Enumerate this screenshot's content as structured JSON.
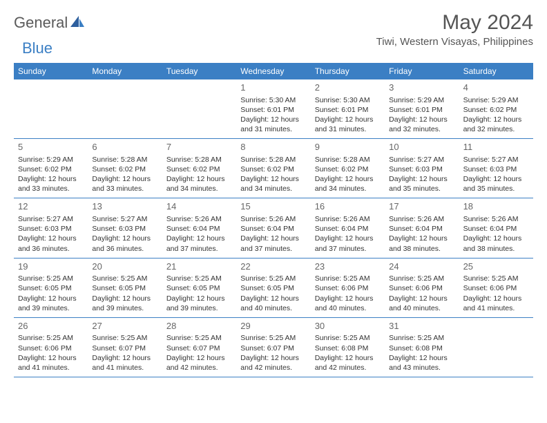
{
  "logo": {
    "text1": "General",
    "text2": "Blue"
  },
  "title": "May 2024",
  "subtitle": "Tiwi, Western Visayas, Philippines",
  "weekdays": [
    "Sunday",
    "Monday",
    "Tuesday",
    "Wednesday",
    "Thursday",
    "Friday",
    "Saturday"
  ],
  "colors": {
    "header_bg": "#3b7fc4",
    "header_text": "#ffffff",
    "border": "#3b7fc4",
    "text": "#333333",
    "daynum": "#666666"
  },
  "weeks": [
    [
      {
        "num": "",
        "sunrise": "",
        "sunset": "",
        "daylight": ""
      },
      {
        "num": "",
        "sunrise": "",
        "sunset": "",
        "daylight": ""
      },
      {
        "num": "",
        "sunrise": "",
        "sunset": "",
        "daylight": ""
      },
      {
        "num": "1",
        "sunrise": "Sunrise: 5:30 AM",
        "sunset": "Sunset: 6:01 PM",
        "daylight": "Daylight: 12 hours and 31 minutes."
      },
      {
        "num": "2",
        "sunrise": "Sunrise: 5:30 AM",
        "sunset": "Sunset: 6:01 PM",
        "daylight": "Daylight: 12 hours and 31 minutes."
      },
      {
        "num": "3",
        "sunrise": "Sunrise: 5:29 AM",
        "sunset": "Sunset: 6:01 PM",
        "daylight": "Daylight: 12 hours and 32 minutes."
      },
      {
        "num": "4",
        "sunrise": "Sunrise: 5:29 AM",
        "sunset": "Sunset: 6:02 PM",
        "daylight": "Daylight: 12 hours and 32 minutes."
      }
    ],
    [
      {
        "num": "5",
        "sunrise": "Sunrise: 5:29 AM",
        "sunset": "Sunset: 6:02 PM",
        "daylight": "Daylight: 12 hours and 33 minutes."
      },
      {
        "num": "6",
        "sunrise": "Sunrise: 5:28 AM",
        "sunset": "Sunset: 6:02 PM",
        "daylight": "Daylight: 12 hours and 33 minutes."
      },
      {
        "num": "7",
        "sunrise": "Sunrise: 5:28 AM",
        "sunset": "Sunset: 6:02 PM",
        "daylight": "Daylight: 12 hours and 34 minutes."
      },
      {
        "num": "8",
        "sunrise": "Sunrise: 5:28 AM",
        "sunset": "Sunset: 6:02 PM",
        "daylight": "Daylight: 12 hours and 34 minutes."
      },
      {
        "num": "9",
        "sunrise": "Sunrise: 5:28 AM",
        "sunset": "Sunset: 6:02 PM",
        "daylight": "Daylight: 12 hours and 34 minutes."
      },
      {
        "num": "10",
        "sunrise": "Sunrise: 5:27 AM",
        "sunset": "Sunset: 6:03 PM",
        "daylight": "Daylight: 12 hours and 35 minutes."
      },
      {
        "num": "11",
        "sunrise": "Sunrise: 5:27 AM",
        "sunset": "Sunset: 6:03 PM",
        "daylight": "Daylight: 12 hours and 35 minutes."
      }
    ],
    [
      {
        "num": "12",
        "sunrise": "Sunrise: 5:27 AM",
        "sunset": "Sunset: 6:03 PM",
        "daylight": "Daylight: 12 hours and 36 minutes."
      },
      {
        "num": "13",
        "sunrise": "Sunrise: 5:27 AM",
        "sunset": "Sunset: 6:03 PM",
        "daylight": "Daylight: 12 hours and 36 minutes."
      },
      {
        "num": "14",
        "sunrise": "Sunrise: 5:26 AM",
        "sunset": "Sunset: 6:04 PM",
        "daylight": "Daylight: 12 hours and 37 minutes."
      },
      {
        "num": "15",
        "sunrise": "Sunrise: 5:26 AM",
        "sunset": "Sunset: 6:04 PM",
        "daylight": "Daylight: 12 hours and 37 minutes."
      },
      {
        "num": "16",
        "sunrise": "Sunrise: 5:26 AM",
        "sunset": "Sunset: 6:04 PM",
        "daylight": "Daylight: 12 hours and 37 minutes."
      },
      {
        "num": "17",
        "sunrise": "Sunrise: 5:26 AM",
        "sunset": "Sunset: 6:04 PM",
        "daylight": "Daylight: 12 hours and 38 minutes."
      },
      {
        "num": "18",
        "sunrise": "Sunrise: 5:26 AM",
        "sunset": "Sunset: 6:04 PM",
        "daylight": "Daylight: 12 hours and 38 minutes."
      }
    ],
    [
      {
        "num": "19",
        "sunrise": "Sunrise: 5:25 AM",
        "sunset": "Sunset: 6:05 PM",
        "daylight": "Daylight: 12 hours and 39 minutes."
      },
      {
        "num": "20",
        "sunrise": "Sunrise: 5:25 AM",
        "sunset": "Sunset: 6:05 PM",
        "daylight": "Daylight: 12 hours and 39 minutes."
      },
      {
        "num": "21",
        "sunrise": "Sunrise: 5:25 AM",
        "sunset": "Sunset: 6:05 PM",
        "daylight": "Daylight: 12 hours and 39 minutes."
      },
      {
        "num": "22",
        "sunrise": "Sunrise: 5:25 AM",
        "sunset": "Sunset: 6:05 PM",
        "daylight": "Daylight: 12 hours and 40 minutes."
      },
      {
        "num": "23",
        "sunrise": "Sunrise: 5:25 AM",
        "sunset": "Sunset: 6:06 PM",
        "daylight": "Daylight: 12 hours and 40 minutes."
      },
      {
        "num": "24",
        "sunrise": "Sunrise: 5:25 AM",
        "sunset": "Sunset: 6:06 PM",
        "daylight": "Daylight: 12 hours and 40 minutes."
      },
      {
        "num": "25",
        "sunrise": "Sunrise: 5:25 AM",
        "sunset": "Sunset: 6:06 PM",
        "daylight": "Daylight: 12 hours and 41 minutes."
      }
    ],
    [
      {
        "num": "26",
        "sunrise": "Sunrise: 5:25 AM",
        "sunset": "Sunset: 6:06 PM",
        "daylight": "Daylight: 12 hours and 41 minutes."
      },
      {
        "num": "27",
        "sunrise": "Sunrise: 5:25 AM",
        "sunset": "Sunset: 6:07 PM",
        "daylight": "Daylight: 12 hours and 41 minutes."
      },
      {
        "num": "28",
        "sunrise": "Sunrise: 5:25 AM",
        "sunset": "Sunset: 6:07 PM",
        "daylight": "Daylight: 12 hours and 42 minutes."
      },
      {
        "num": "29",
        "sunrise": "Sunrise: 5:25 AM",
        "sunset": "Sunset: 6:07 PM",
        "daylight": "Daylight: 12 hours and 42 minutes."
      },
      {
        "num": "30",
        "sunrise": "Sunrise: 5:25 AM",
        "sunset": "Sunset: 6:08 PM",
        "daylight": "Daylight: 12 hours and 42 minutes."
      },
      {
        "num": "31",
        "sunrise": "Sunrise: 5:25 AM",
        "sunset": "Sunset: 6:08 PM",
        "daylight": "Daylight: 12 hours and 43 minutes."
      },
      {
        "num": "",
        "sunrise": "",
        "sunset": "",
        "daylight": ""
      }
    ]
  ]
}
